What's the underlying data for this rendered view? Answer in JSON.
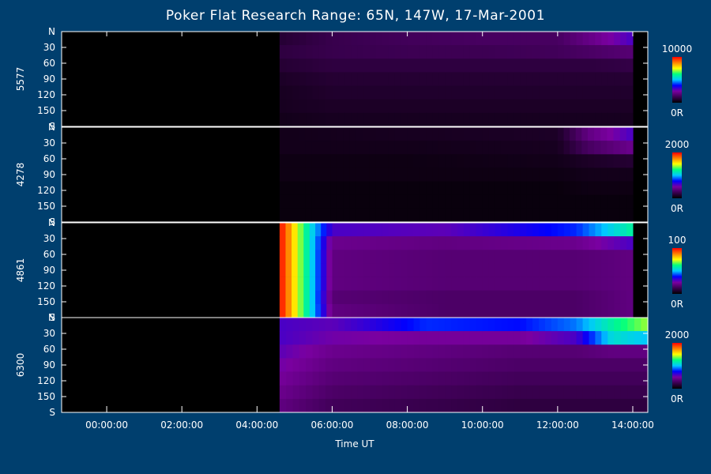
{
  "title": "Poker Flat Research Range: 65N, 147W, 17-Mar-2001",
  "xlabel": "Time UT",
  "chart_data": {
    "type": "heatmap",
    "title": "Poker Flat Research Range: 65N, 147W, 17-Mar-2001",
    "xlabel": "Time UT",
    "x_ticks": [
      "00:00:00",
      "02:00:00",
      "04:00:00",
      "06:00:00",
      "08:00:00",
      "10:00:00",
      "12:00:00",
      "14:00:00"
    ],
    "x_tick_hours": [
      0,
      2,
      4,
      6,
      8,
      10,
      12,
      14
    ],
    "xlim_hours": [
      -1.2,
      14.4
    ],
    "y_ticks": [
      "N",
      "30",
      "60",
      "90",
      "120",
      "150",
      "S"
    ],
    "y_tick_values": [
      0,
      30,
      60,
      90,
      120,
      150,
      180
    ],
    "ylim": [
      0,
      180
    ],
    "colormap": [
      "#000000",
      "#3a0050",
      "#7a00a0",
      "#0000ff",
      "#00c8ff",
      "#00ff80",
      "#ffff00",
      "#ff8000",
      "#ff0000"
    ],
    "panels": [
      {
        "name": "5577",
        "scale_max": "10000",
        "scale_min": "0R",
        "data_start_hour": 4.6,
        "rows": [
          {
            "t": 4.6,
            "v": [
              0.08,
              0.1,
              0.08,
              0.06,
              0.05,
              0.05,
              0.04
            ]
          },
          {
            "t": 6.0,
            "v": [
              0.12,
              0.12,
              0.1,
              0.08,
              0.07,
              0.06,
              0.05
            ]
          },
          {
            "t": 8.0,
            "v": [
              0.14,
              0.13,
              0.1,
              0.08,
              0.07,
              0.06,
              0.05
            ]
          },
          {
            "t": 10.0,
            "v": [
              0.15,
              0.13,
              0.1,
              0.08,
              0.07,
              0.06,
              0.05
            ]
          },
          {
            "t": 12.0,
            "v": [
              0.15,
              0.14,
              0.1,
              0.08,
              0.07,
              0.06,
              0.05
            ]
          },
          {
            "t": 13.0,
            "v": [
              0.22,
              0.16,
              0.1,
              0.08,
              0.07,
              0.06,
              0.05
            ]
          },
          {
            "t": 14.0,
            "v": [
              0.3,
              0.18,
              0.11,
              0.08,
              0.07,
              0.06,
              0.05
            ]
          }
        ]
      },
      {
        "name": "4278",
        "scale_max": "2000",
        "scale_min": "0R",
        "data_start_hour": 4.6,
        "rows": [
          {
            "t": 4.6,
            "v": [
              0.04,
              0.04,
              0.03,
              0.03,
              0.02,
              0.02,
              0.02
            ]
          },
          {
            "t": 8.0,
            "v": [
              0.05,
              0.04,
              0.03,
              0.03,
              0.02,
              0.02,
              0.02
            ]
          },
          {
            "t": 12.0,
            "v": [
              0.06,
              0.05,
              0.04,
              0.03,
              0.02,
              0.02,
              0.02
            ]
          },
          {
            "t": 12.8,
            "v": [
              0.2,
              0.15,
              0.06,
              0.04,
              0.03,
              0.02,
              0.02
            ]
          },
          {
            "t": 14.0,
            "v": [
              0.3,
              0.22,
              0.08,
              0.04,
              0.03,
              0.02,
              0.02
            ]
          }
        ]
      },
      {
        "name": "4861",
        "scale_max": "100",
        "scale_min": "0R",
        "data_start_hour": 4.6,
        "rows": [
          {
            "t": 4.6,
            "v": [
              1.0,
              1.0,
              1.0,
              1.0,
              1.0,
              1.0,
              1.0
            ]
          },
          {
            "t": 5.4,
            "v": [
              0.55,
              0.55,
              0.55,
              0.55,
              0.55,
              0.55,
              0.55
            ]
          },
          {
            "t": 6.0,
            "v": [
              0.3,
              0.22,
              0.2,
              0.2,
              0.2,
              0.18,
              0.2
            ]
          },
          {
            "t": 9.0,
            "v": [
              0.28,
              0.2,
              0.18,
              0.18,
              0.18,
              0.16,
              0.16
            ]
          },
          {
            "t": 12.5,
            "v": [
              0.4,
              0.22,
              0.18,
              0.18,
              0.18,
              0.16,
              0.16
            ]
          },
          {
            "t": 14.0,
            "v": [
              0.6,
              0.3,
              0.2,
              0.2,
              0.2,
              0.2,
              0.2
            ]
          }
        ]
      },
      {
        "name": "6300",
        "scale_max": "2000",
        "scale_min": "0R",
        "data_start_hour": 4.6,
        "rows": [
          {
            "t": 4.6,
            "v": [
              0.3,
              0.3,
              0.28,
              0.26,
              0.24,
              0.22,
              0.2
            ]
          },
          {
            "t": 6.0,
            "v": [
              0.28,
              0.26,
              0.22,
              0.2,
              0.18,
              0.16,
              0.14
            ]
          },
          {
            "t": 8.5,
            "v": [
              0.4,
              0.24,
              0.2,
              0.18,
              0.16,
              0.14,
              0.12
            ]
          },
          {
            "t": 11.0,
            "v": [
              0.38,
              0.24,
              0.18,
              0.16,
              0.14,
              0.12,
              0.1
            ]
          },
          {
            "t": 12.5,
            "v": [
              0.45,
              0.3,
              0.18,
              0.16,
              0.14,
              0.12,
              0.1
            ]
          },
          {
            "t": 13.5,
            "v": [
              0.6,
              0.55,
              0.2,
              0.16,
              0.14,
              0.12,
              0.1
            ]
          },
          {
            "t": 14.4,
            "v": [
              0.7,
              0.5,
              0.2,
              0.16,
              0.14,
              0.12,
              0.1
            ]
          }
        ]
      }
    ]
  }
}
